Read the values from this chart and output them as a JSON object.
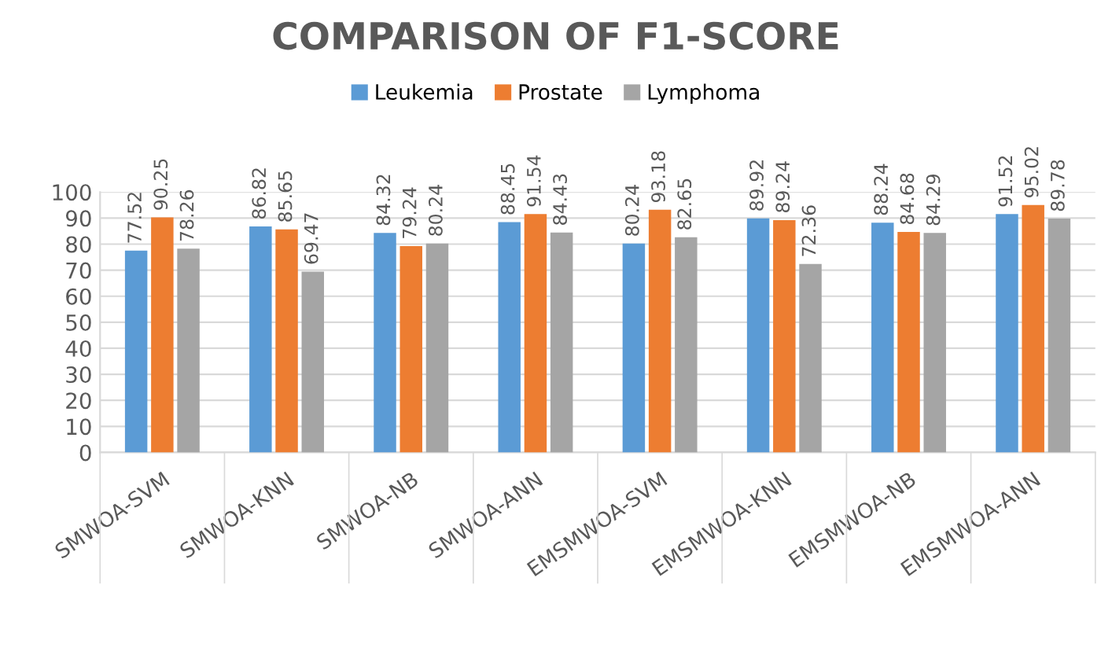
{
  "chart_data": {
    "type": "bar",
    "title": "COMPARISON OF F1-SCORE",
    "categories": [
      "SMWOA-SVM",
      "SMWOA-KNN",
      "SMWOA-NB",
      "SMWOA-ANN",
      "EMSMWOA-SVM",
      "EMSMWOA-KNN",
      "EMSMWOA-NB",
      "EMSMWOA-ANN"
    ],
    "series": [
      {
        "name": "Leukemia",
        "color": "#5b9bd5",
        "values": [
          77.52,
          86.82,
          84.32,
          88.45,
          80.24,
          89.92,
          88.24,
          91.52
        ]
      },
      {
        "name": "Prostate",
        "color": "#ed7d31",
        "values": [
          90.25,
          85.65,
          79.24,
          91.54,
          93.18,
          89.24,
          84.68,
          95.02
        ]
      },
      {
        "name": "Lymphoma",
        "color": "#a5a5a5",
        "values": [
          78.26,
          69.47,
          80.24,
          84.43,
          82.65,
          72.36,
          84.29,
          89.78
        ]
      }
    ],
    "ylim": [
      0,
      100
    ],
    "yticks": [
      0,
      10,
      20,
      30,
      40,
      50,
      60,
      70,
      80,
      90,
      100
    ],
    "grid": "y",
    "legend": "top",
    "data_labels": true
  }
}
